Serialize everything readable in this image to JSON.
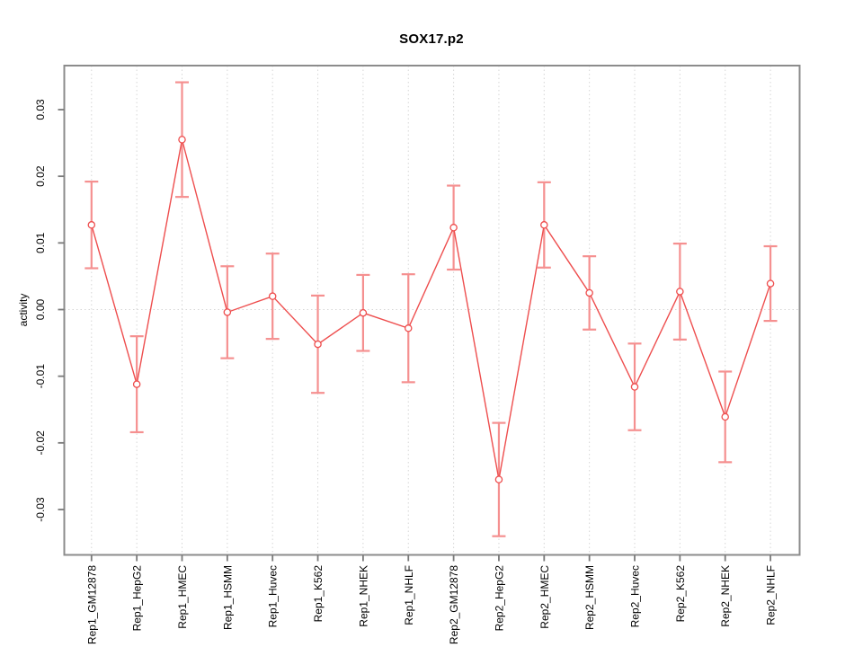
{
  "figure": {
    "title": "SOX17.p2",
    "y_axis_label": "activity"
  },
  "chart_data": {
    "type": "line",
    "title": "SOX17.p2",
    "xlabel": "",
    "ylabel": "activity",
    "categories": [
      "Rep1_GM12878",
      "Rep1_HepG2",
      "Rep1_HMEC",
      "Rep1_HSMM",
      "Rep1_Huvec",
      "Rep1_K562",
      "Rep1_NHEK",
      "Rep1_NHLF",
      "Rep2_GM12878",
      "Rep2_HepG2",
      "Rep2_HMEC",
      "Rep2_HSMM",
      "Rep2_Huvec",
      "Rep2_K562",
      "Rep2_NHEK",
      "Rep2_NHLF"
    ],
    "series": [
      {
        "name": "activity",
        "marker": "open-circle",
        "values": [
          0.0127,
          -0.0112,
          0.0255,
          -0.0004,
          0.002,
          -0.0052,
          -0.0005,
          -0.0028,
          0.0123,
          -0.0255,
          0.0127,
          0.0025,
          -0.0116,
          0.0027,
          -0.0161,
          0.0039
        ],
        "errors": [
          0.0065,
          0.0072,
          0.0086,
          0.0069,
          0.0064,
          0.0073,
          0.0057,
          0.0081,
          0.0063,
          0.0085,
          0.0064,
          0.0055,
          0.0065,
          0.0072,
          0.0068,
          0.0056
        ]
      }
    ],
    "ylim": [
      -0.0367,
      0.0367
    ],
    "yticks": [
      -0.03,
      -0.02,
      -0.01,
      0.0,
      0.01,
      0.02,
      0.03
    ],
    "y_tick_labels": [
      "-0.03",
      "-0.02",
      "-0.01",
      "0.00",
      "0.01",
      "0.02",
      "0.03"
    ],
    "grid": {
      "vertical": "dotted line at each category",
      "horizontal": "dotted line at y=0"
    },
    "legend": "none",
    "colors": {
      "line": "#ee4e4e",
      "error_bar": "#f59090",
      "grid": "#d6d6d6",
      "box": "#8c8c8c",
      "tick": "#7a7a7a",
      "text": "#000000",
      "background": "#ffffff"
    }
  }
}
